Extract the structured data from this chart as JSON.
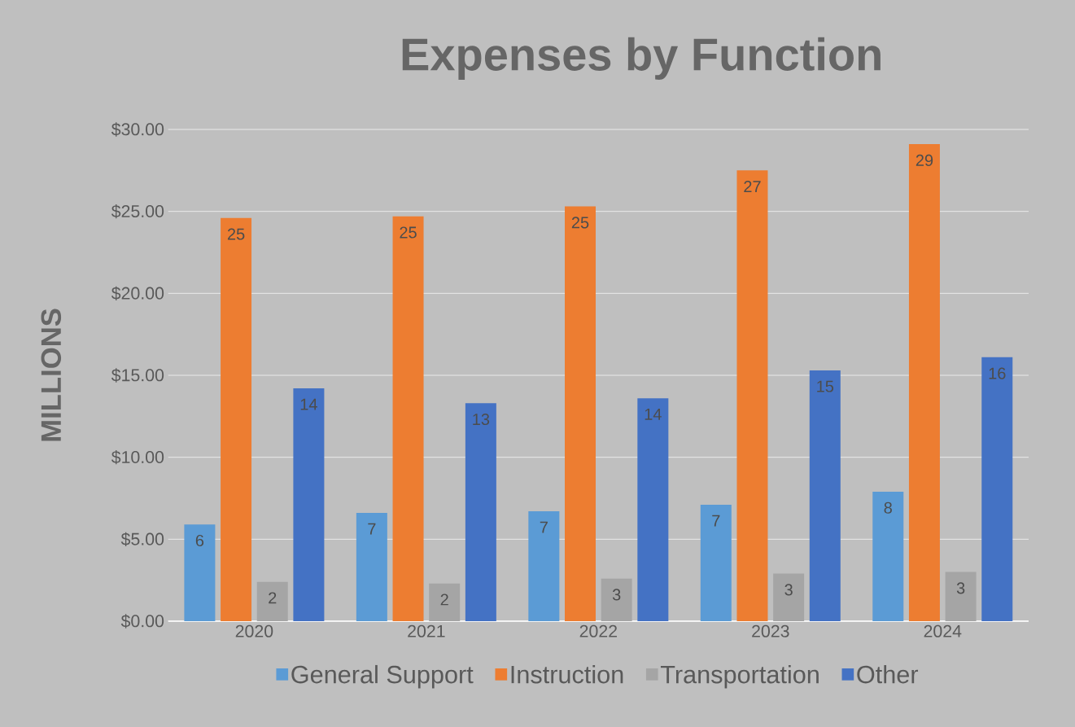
{
  "chart_data": {
    "type": "bar",
    "title": "Expenses by Function",
    "ylabel": "MILLIONS",
    "categories": [
      "2020",
      "2021",
      "2022",
      "2023",
      "2024"
    ],
    "series": [
      {
        "name": "General Support",
        "color": "#5b9bd5",
        "values": [
          5.9,
          6.6,
          6.7,
          7.1,
          7.9
        ],
        "value_labels": [
          "6",
          "7",
          "7",
          "7",
          "8"
        ]
      },
      {
        "name": "Instruction",
        "color": "#ed7d31",
        "values": [
          24.6,
          24.7,
          25.3,
          27.5,
          29.1
        ],
        "value_labels": [
          "25",
          "25",
          "25",
          "27",
          "29"
        ]
      },
      {
        "name": "Transportation",
        "color": "#a5a5a5",
        "values": [
          2.4,
          2.3,
          2.6,
          2.9,
          3.0
        ],
        "value_labels": [
          "2",
          "2",
          "3",
          "3",
          "3"
        ]
      },
      {
        "name": "Other",
        "color": "#4472c4",
        "values": [
          14.2,
          13.3,
          13.6,
          15.3,
          16.1
        ],
        "value_labels": [
          "14",
          "13",
          "14",
          "15",
          "16"
        ]
      }
    ],
    "ylim": [
      0,
      30
    ],
    "yticks": [
      {
        "value": 0,
        "label": "$0.00"
      },
      {
        "value": 5,
        "label": "$5.00"
      },
      {
        "value": 10,
        "label": "$10.00"
      },
      {
        "value": 15,
        "label": "$15.00"
      },
      {
        "value": 20,
        "label": "$20.00"
      },
      {
        "value": 25,
        "label": "$25.00"
      },
      {
        "value": 30,
        "label": "$30.00"
      }
    ],
    "grid": "y",
    "legend": "bottom"
  }
}
